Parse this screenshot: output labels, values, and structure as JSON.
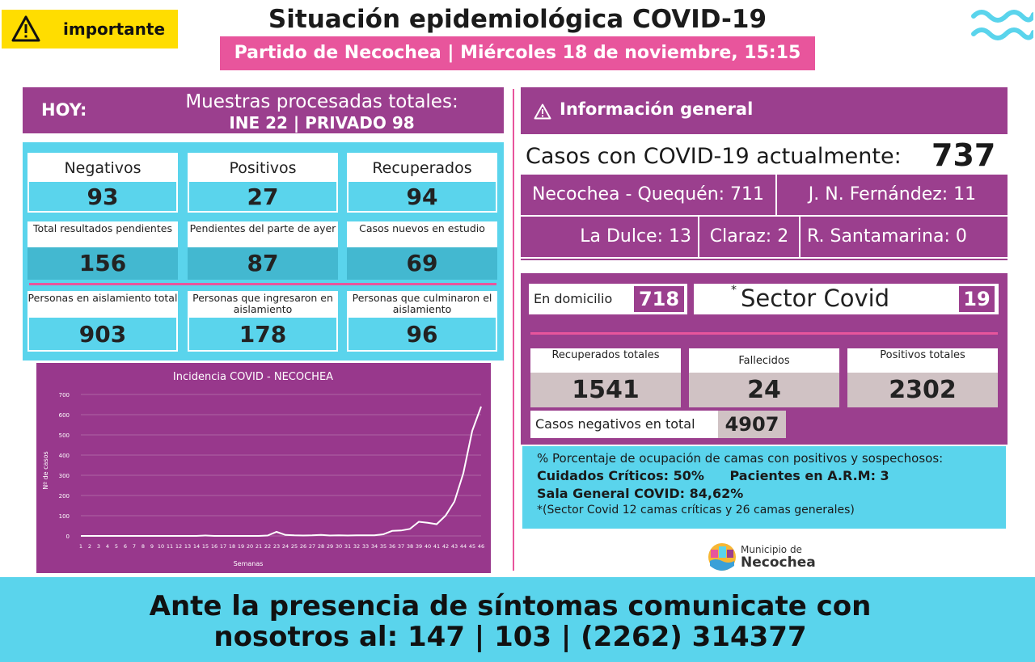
{
  "header": {
    "badge_label": "importante",
    "title": "Situación epidemiológica COVID-19",
    "subtitle": "Partido de Necochea | Miércoles 18 de noviembre, 15:15 hs."
  },
  "hoy": {
    "label": "HOY:",
    "line1": "Muestras procesadas totales:",
    "line2": "INE 22 | PRIVADO 98"
  },
  "stats": [
    {
      "label": "Negativos",
      "value": "93"
    },
    {
      "label": "Positivos",
      "value": "27"
    },
    {
      "label": "Recuperados",
      "value": "94"
    },
    {
      "label": "Total resultados pendientes",
      "value": "156"
    },
    {
      "label": "Pendientes del parte de ayer",
      "value": "87"
    },
    {
      "label": "Casos nuevos en estudio",
      "value": "69"
    },
    {
      "label": "Personas en aislamiento total",
      "value": "903"
    },
    {
      "label": "Personas que ingresaron en aislamiento",
      "value": "178"
    },
    {
      "label": "Personas que culminaron el aislamiento",
      "value": "96"
    }
  ],
  "chart_data": {
    "type": "line",
    "title": "Incidencia COVID - NECOCHEA",
    "xlabel": "Semanas",
    "ylabel": "Nº de casos",
    "ylim": [
      0,
      700
    ],
    "yticks": [
      0,
      100,
      200,
      300,
      400,
      500,
      600,
      700
    ],
    "grid": true,
    "x": [
      1,
      2,
      3,
      4,
      5,
      6,
      7,
      8,
      9,
      10,
      11,
      12,
      13,
      14,
      15,
      16,
      17,
      18,
      19,
      20,
      21,
      22,
      23,
      24,
      25,
      26,
      27,
      28,
      29,
      30,
      31,
      32,
      33,
      34,
      35,
      36,
      37,
      38,
      39,
      40,
      41,
      42,
      43,
      44,
      45,
      46
    ],
    "series": [
      {
        "values": [
          0,
          0,
          0,
          0,
          0,
          0,
          0,
          0,
          0,
          0,
          0,
          0,
          0,
          0,
          2,
          0,
          0,
          0,
          0,
          0,
          0,
          2,
          20,
          5,
          3,
          2,
          3,
          5,
          2,
          3,
          2,
          3,
          3,
          3,
          8,
          25,
          27,
          35,
          70,
          65,
          58,
          100,
          170,
          310,
          520,
          640
        ]
      }
    ],
    "line_color": "#ffffff"
  },
  "info": {
    "title": "Información general",
    "casos_label": "Casos con COVID-19 actualmente:",
    "casos_value": "737",
    "locations": [
      "Necochea - Quequén: 711",
      "J. N. Fernández: 11",
      "La Dulce: 13",
      "Claraz: 2",
      "R. Santamarina: 0"
    ]
  },
  "status": {
    "domicilio_label": "En domicilio",
    "domicilio_value": "718",
    "sector_mark": "*",
    "sector_label": "Sector Covid",
    "sector_value": "19"
  },
  "totals": [
    {
      "label": "Recuperados totales",
      "value": "1541"
    },
    {
      "label": "Fallecidos",
      "value": "24"
    },
    {
      "label": "Positivos totales",
      "value": "2302"
    }
  ],
  "negativos": {
    "label": "Casos negativos en total",
    "value": "4907"
  },
  "beds": {
    "line1": "% Porcentaje de ocupación de camas con positivos y sospechosos:",
    "criticos": "Cuidados Críticos: 50%",
    "arm": "Pacientes en A.R.M: 3",
    "general": "Sala General COVID: 84,62%",
    "note": "*(Sector Covid 12 camas críticas y 26 camas generales)"
  },
  "logo": {
    "line1": "Municipio de",
    "line2": "Necochea"
  },
  "footer": {
    "line1": "Ante la presencia de síntomas comunicate con",
    "line2": "nosotros al: 147 | 103 | (2262) 314377"
  },
  "colors": {
    "purple": "#9b3f8e",
    "pink": "#e8559c",
    "cyan": "#5ad4ec",
    "yellow": "#ffdd00"
  }
}
